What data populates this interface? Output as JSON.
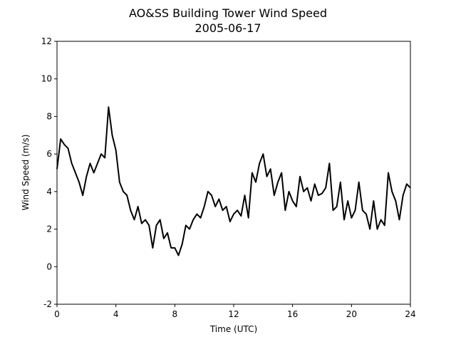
{
  "chart_data": {
    "type": "line",
    "title": "AO&SS Building Tower Wind Speed",
    "subtitle": "2005-06-17",
    "x_label": "Time (UTC)",
    "y_label": "Wind Speed (m/s)",
    "x": [
      0,
      0.25,
      0.5,
      0.75,
      1,
      1.25,
      1.5,
      1.75,
      2,
      2.25,
      2.5,
      2.75,
      3,
      3.25,
      3.5,
      3.75,
      4,
      4.25,
      4.5,
      4.75,
      5,
      5.25,
      5.5,
      5.75,
      6,
      6.25,
      6.5,
      6.75,
      7,
      7.25,
      7.5,
      7.75,
      8,
      8.25,
      8.5,
      8.75,
      9,
      9.25,
      9.5,
      9.75,
      10,
      10.25,
      10.5,
      10.75,
      11,
      11.25,
      11.5,
      11.75,
      12,
      12.25,
      12.5,
      12.75,
      13,
      13.25,
      13.5,
      13.75,
      14,
      14.25,
      14.5,
      14.75,
      15,
      15.25,
      15.5,
      15.75,
      16,
      16.25,
      16.5,
      16.75,
      17,
      17.25,
      17.5,
      17.75,
      18,
      18.25,
      18.5,
      18.75,
      19,
      19.25,
      19.5,
      19.75,
      20,
      20.25,
      20.5,
      20.75,
      21,
      21.25,
      21.5,
      21.75,
      22,
      22.25,
      22.5,
      22.75,
      23,
      23.25,
      23.5,
      23.75,
      24
    ],
    "series": [
      {
        "name": "Wind Speed",
        "color": "#000000",
        "values": [
          5.2,
          6.8,
          6.5,
          6.3,
          5.5,
          5.0,
          4.5,
          3.8,
          4.8,
          5.5,
          5.0,
          5.5,
          6.0,
          5.8,
          8.5,
          7.0,
          6.2,
          4.5,
          4.0,
          3.8,
          3.0,
          2.5,
          3.2,
          2.3,
          2.5,
          2.2,
          1.0,
          2.2,
          2.5,
          1.5,
          1.8,
          1.0,
          1.0,
          0.6,
          1.2,
          2.2,
          2.0,
          2.5,
          2.8,
          2.6,
          3.2,
          4.0,
          3.8,
          3.2,
          3.6,
          3.0,
          3.2,
          2.4,
          2.8,
          3.0,
          2.7,
          3.8,
          2.6,
          5.0,
          4.5,
          5.5,
          6.0,
          4.8,
          5.2,
          3.8,
          4.5,
          5.0,
          3.0,
          4.0,
          3.5,
          3.2,
          4.8,
          4.0,
          4.2,
          3.5,
          4.4,
          3.8,
          3.9,
          4.2,
          5.5,
          3.0,
          3.2,
          4.5,
          2.5,
          3.5,
          2.6,
          3.0,
          4.5,
          3.0,
          2.8,
          2.0,
          3.5,
          2.0,
          2.5,
          2.2,
          5.0,
          4.0,
          3.5,
          2.5,
          3.8,
          4.4,
          4.2
        ]
      }
    ],
    "xlim": [
      0,
      24
    ],
    "xticks": [
      0,
      4,
      8,
      12,
      16,
      20,
      24
    ],
    "ylim": [
      -2,
      12
    ],
    "yticks": [
      -2,
      0,
      2,
      4,
      6,
      8,
      10,
      12
    ]
  }
}
